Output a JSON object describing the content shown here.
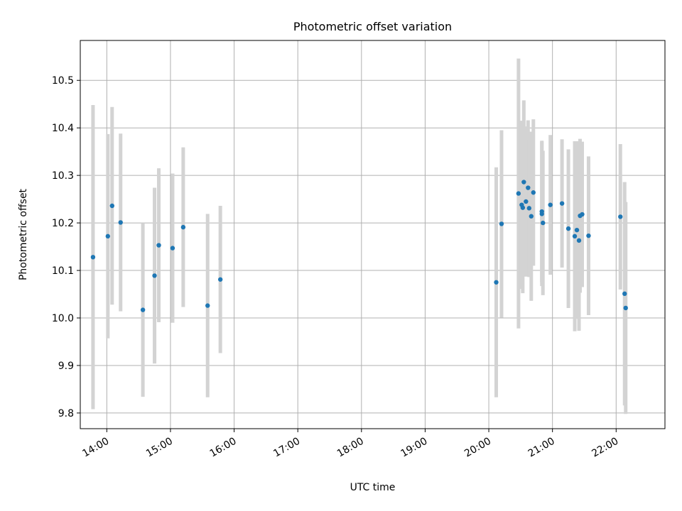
{
  "chart_data": {
    "type": "scatter",
    "title": "Photometric offset variation",
    "xlabel": "UTC time",
    "ylabel": "Photometric offset",
    "x_ticks": [
      "14:00",
      "15:00",
      "16:00",
      "17:00",
      "18:00",
      "19:00",
      "20:00",
      "21:00",
      "22:00"
    ],
    "y_ticks": [
      "9.8",
      "9.9",
      "10.0",
      "10.1",
      "10.2",
      "10.3",
      "10.4",
      "10.5"
    ],
    "xlim": [
      "13:35",
      "22:46"
    ],
    "ylim": [
      9.767,
      10.584
    ],
    "grid": true,
    "colors": {
      "points": "#1f77b4",
      "errorbars": "#d3d3d3",
      "grid": "#b0b0b0"
    },
    "series": [
      {
        "points": [
          {
            "t": "13:47",
            "y": 10.128,
            "err": 0.32
          },
          {
            "t": "14:01",
            "y": 10.172,
            "err": 0.215
          },
          {
            "t": "14:05",
            "y": 10.236,
            "err": 0.208
          },
          {
            "t": "14:13",
            "y": 10.201,
            "err": 0.187
          },
          {
            "t": "14:34",
            "y": 10.017,
            "err": 0.183
          },
          {
            "t": "14:45",
            "y": 10.089,
            "err": 0.185
          },
          {
            "t": "14:49",
            "y": 10.153,
            "err": 0.162
          },
          {
            "t": "15:02",
            "y": 10.147,
            "err": 0.157
          },
          {
            "t": "15:12",
            "y": 10.191,
            "err": 0.168
          },
          {
            "t": "15:35",
            "y": 10.026,
            "err": 0.193
          },
          {
            "t": "15:47",
            "y": 10.081,
            "err": 0.155
          },
          {
            "t": "20:07",
            "y": 10.075,
            "err": 0.242
          },
          {
            "t": "20:12",
            "y": 10.198,
            "err": 0.197
          },
          {
            "t": "20:28",
            "y": 10.262,
            "err": 0.284
          },
          {
            "t": "20:31",
            "y": 10.238,
            "err": 0.177
          },
          {
            "t": "20:32",
            "y": 10.232,
            "err": 0.18
          },
          {
            "t": "20:33",
            "y": 10.286,
            "err": 0.172
          },
          {
            "t": "20:35",
            "y": 10.245,
            "err": 0.158
          },
          {
            "t": "20:37",
            "y": 10.274,
            "err": 0.142
          },
          {
            "t": "20:38",
            "y": 10.231,
            "err": 0.145
          },
          {
            "t": "20:40",
            "y": 10.214,
            "err": 0.178
          },
          {
            "t": "20:42",
            "y": 10.264,
            "err": 0.154
          },
          {
            "t": "20:50",
            "y": 10.219,
            "err": 0.152
          },
          {
            "t": "20:50",
            "y": 10.224,
            "err": 0.149
          },
          {
            "t": "20:51",
            "y": 10.2,
            "err": 0.152
          },
          {
            "t": "20:58",
            "y": 10.238,
            "err": 0.147
          },
          {
            "t": "21:09",
            "y": 10.241,
            "err": 0.135
          },
          {
            "t": "21:15",
            "y": 10.188,
            "err": 0.167
          },
          {
            "t": "21:21",
            "y": 10.172,
            "err": 0.2
          },
          {
            "t": "21:23",
            "y": 10.185,
            "err": 0.187
          },
          {
            "t": "21:25",
            "y": 10.163,
            "err": 0.19
          },
          {
            "t": "21:26",
            "y": 10.215,
            "err": 0.162
          },
          {
            "t": "21:28",
            "y": 10.218,
            "err": 0.153
          },
          {
            "t": "21:34",
            "y": 10.173,
            "err": 0.167
          },
          {
            "t": "22:04",
            "y": 10.213,
            "err": 0.153
          },
          {
            "t": "22:08",
            "y": 10.051,
            "err": 0.235
          },
          {
            "t": "22:09",
            "y": 10.021,
            "err": 0.223
          }
        ]
      }
    ]
  }
}
